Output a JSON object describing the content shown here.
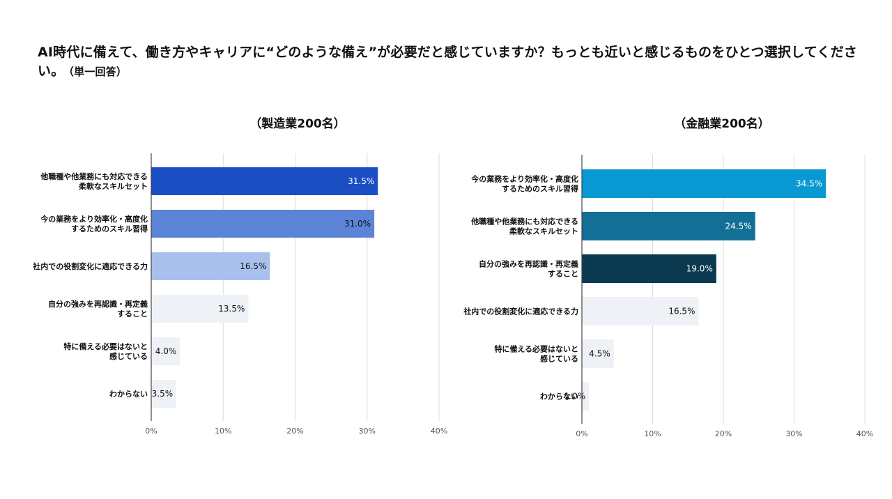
{
  "question": {
    "text": "AI時代に備えて、働き方やキャリアに“どのような備え”が必要だと感じていますか？もっとも近いと感じるものをひとつ選択してください。",
    "note": "（単一回答）"
  },
  "chart_data": [
    {
      "type": "bar",
      "orientation": "horizontal",
      "title": "（製造業200名）",
      "categories": [
        [
          "他職種や他業務にも対応できる",
          "柔軟なスキルセット"
        ],
        [
          "今の業務をより効率化・高度化",
          "するためのスキル習得"
        ],
        [
          "社内での役割変化に適応できる力"
        ],
        [
          "自分の強みを再認識・再定義",
          "すること"
        ],
        [
          "特に備える必要はないと",
          "感じている"
        ],
        [
          "わからない"
        ]
      ],
      "values": [
        31.5,
        31.0,
        16.5,
        13.5,
        4.0,
        3.5
      ],
      "value_labels": [
        "31.5%",
        "31.0%",
        "16.5%",
        "13.5%",
        "4.0%",
        "3.5%"
      ],
      "colors": [
        "#1a4fc4",
        "#5c84d6",
        "#a8c0ec",
        "#eef2f7",
        "#eef2f7",
        "#eef2f7"
      ],
      "label_colors": [
        "#ffffff",
        "#111111",
        "#111111",
        "#111111",
        "#111111",
        "#111111"
      ],
      "xlim": [
        0,
        40
      ],
      "ticks": [
        "0%",
        "10%",
        "20%",
        "30%",
        "40%"
      ],
      "grid": true
    },
    {
      "type": "bar",
      "orientation": "horizontal",
      "title": "（金融業200名）",
      "categories": [
        [
          "今の業務をより効率化・高度化",
          "するためのスキル習得"
        ],
        [
          "他職種や他業務にも対応できる",
          "柔軟なスキルセット"
        ],
        [
          "自分の強みを再認識・再定義",
          "すること"
        ],
        [
          "社内での役割変化に適応できる力"
        ],
        [
          "特に備える必要はないと",
          "感じている"
        ],
        [
          "わからない"
        ]
      ],
      "values": [
        34.5,
        24.5,
        19.0,
        16.5,
        4.5,
        1.0
      ],
      "value_labels": [
        "34.5%",
        "24.5%",
        "19.0%",
        "16.5%",
        "4.5%",
        "1.0%"
      ],
      "colors": [
        "#0899d3",
        "#136f95",
        "#0b3a50",
        "#eef2f7",
        "#eef2f7",
        "#eef2f7"
      ],
      "label_colors": [
        "#ffffff",
        "#ffffff",
        "#ffffff",
        "#111111",
        "#111111",
        "#111111"
      ],
      "xlim": [
        0,
        40
      ],
      "ticks": [
        "0%",
        "10%",
        "20%",
        "30%",
        "40%"
      ],
      "grid": true
    }
  ]
}
